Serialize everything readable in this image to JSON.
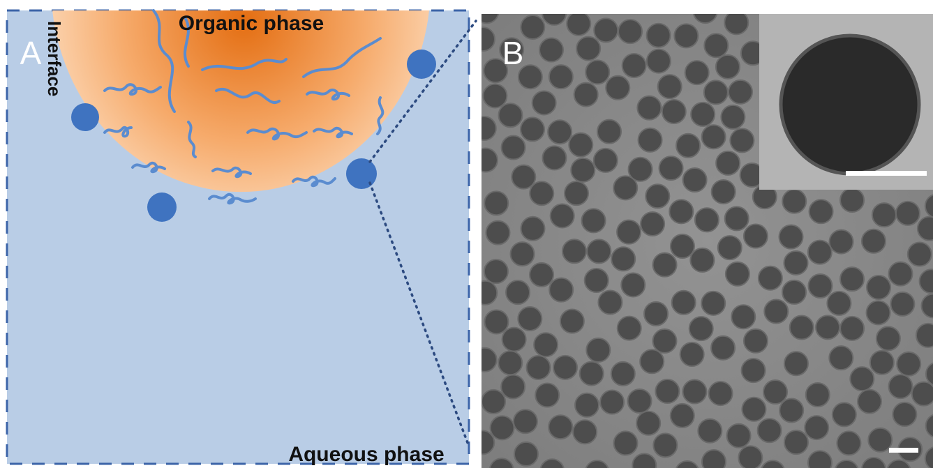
{
  "panel_a": {
    "label": "A",
    "organic_phase": "Organic phase",
    "interface": "Interface",
    "aqueous_phase": "Aqueous phase"
  },
  "panel_b": {
    "label": "B"
  }
}
